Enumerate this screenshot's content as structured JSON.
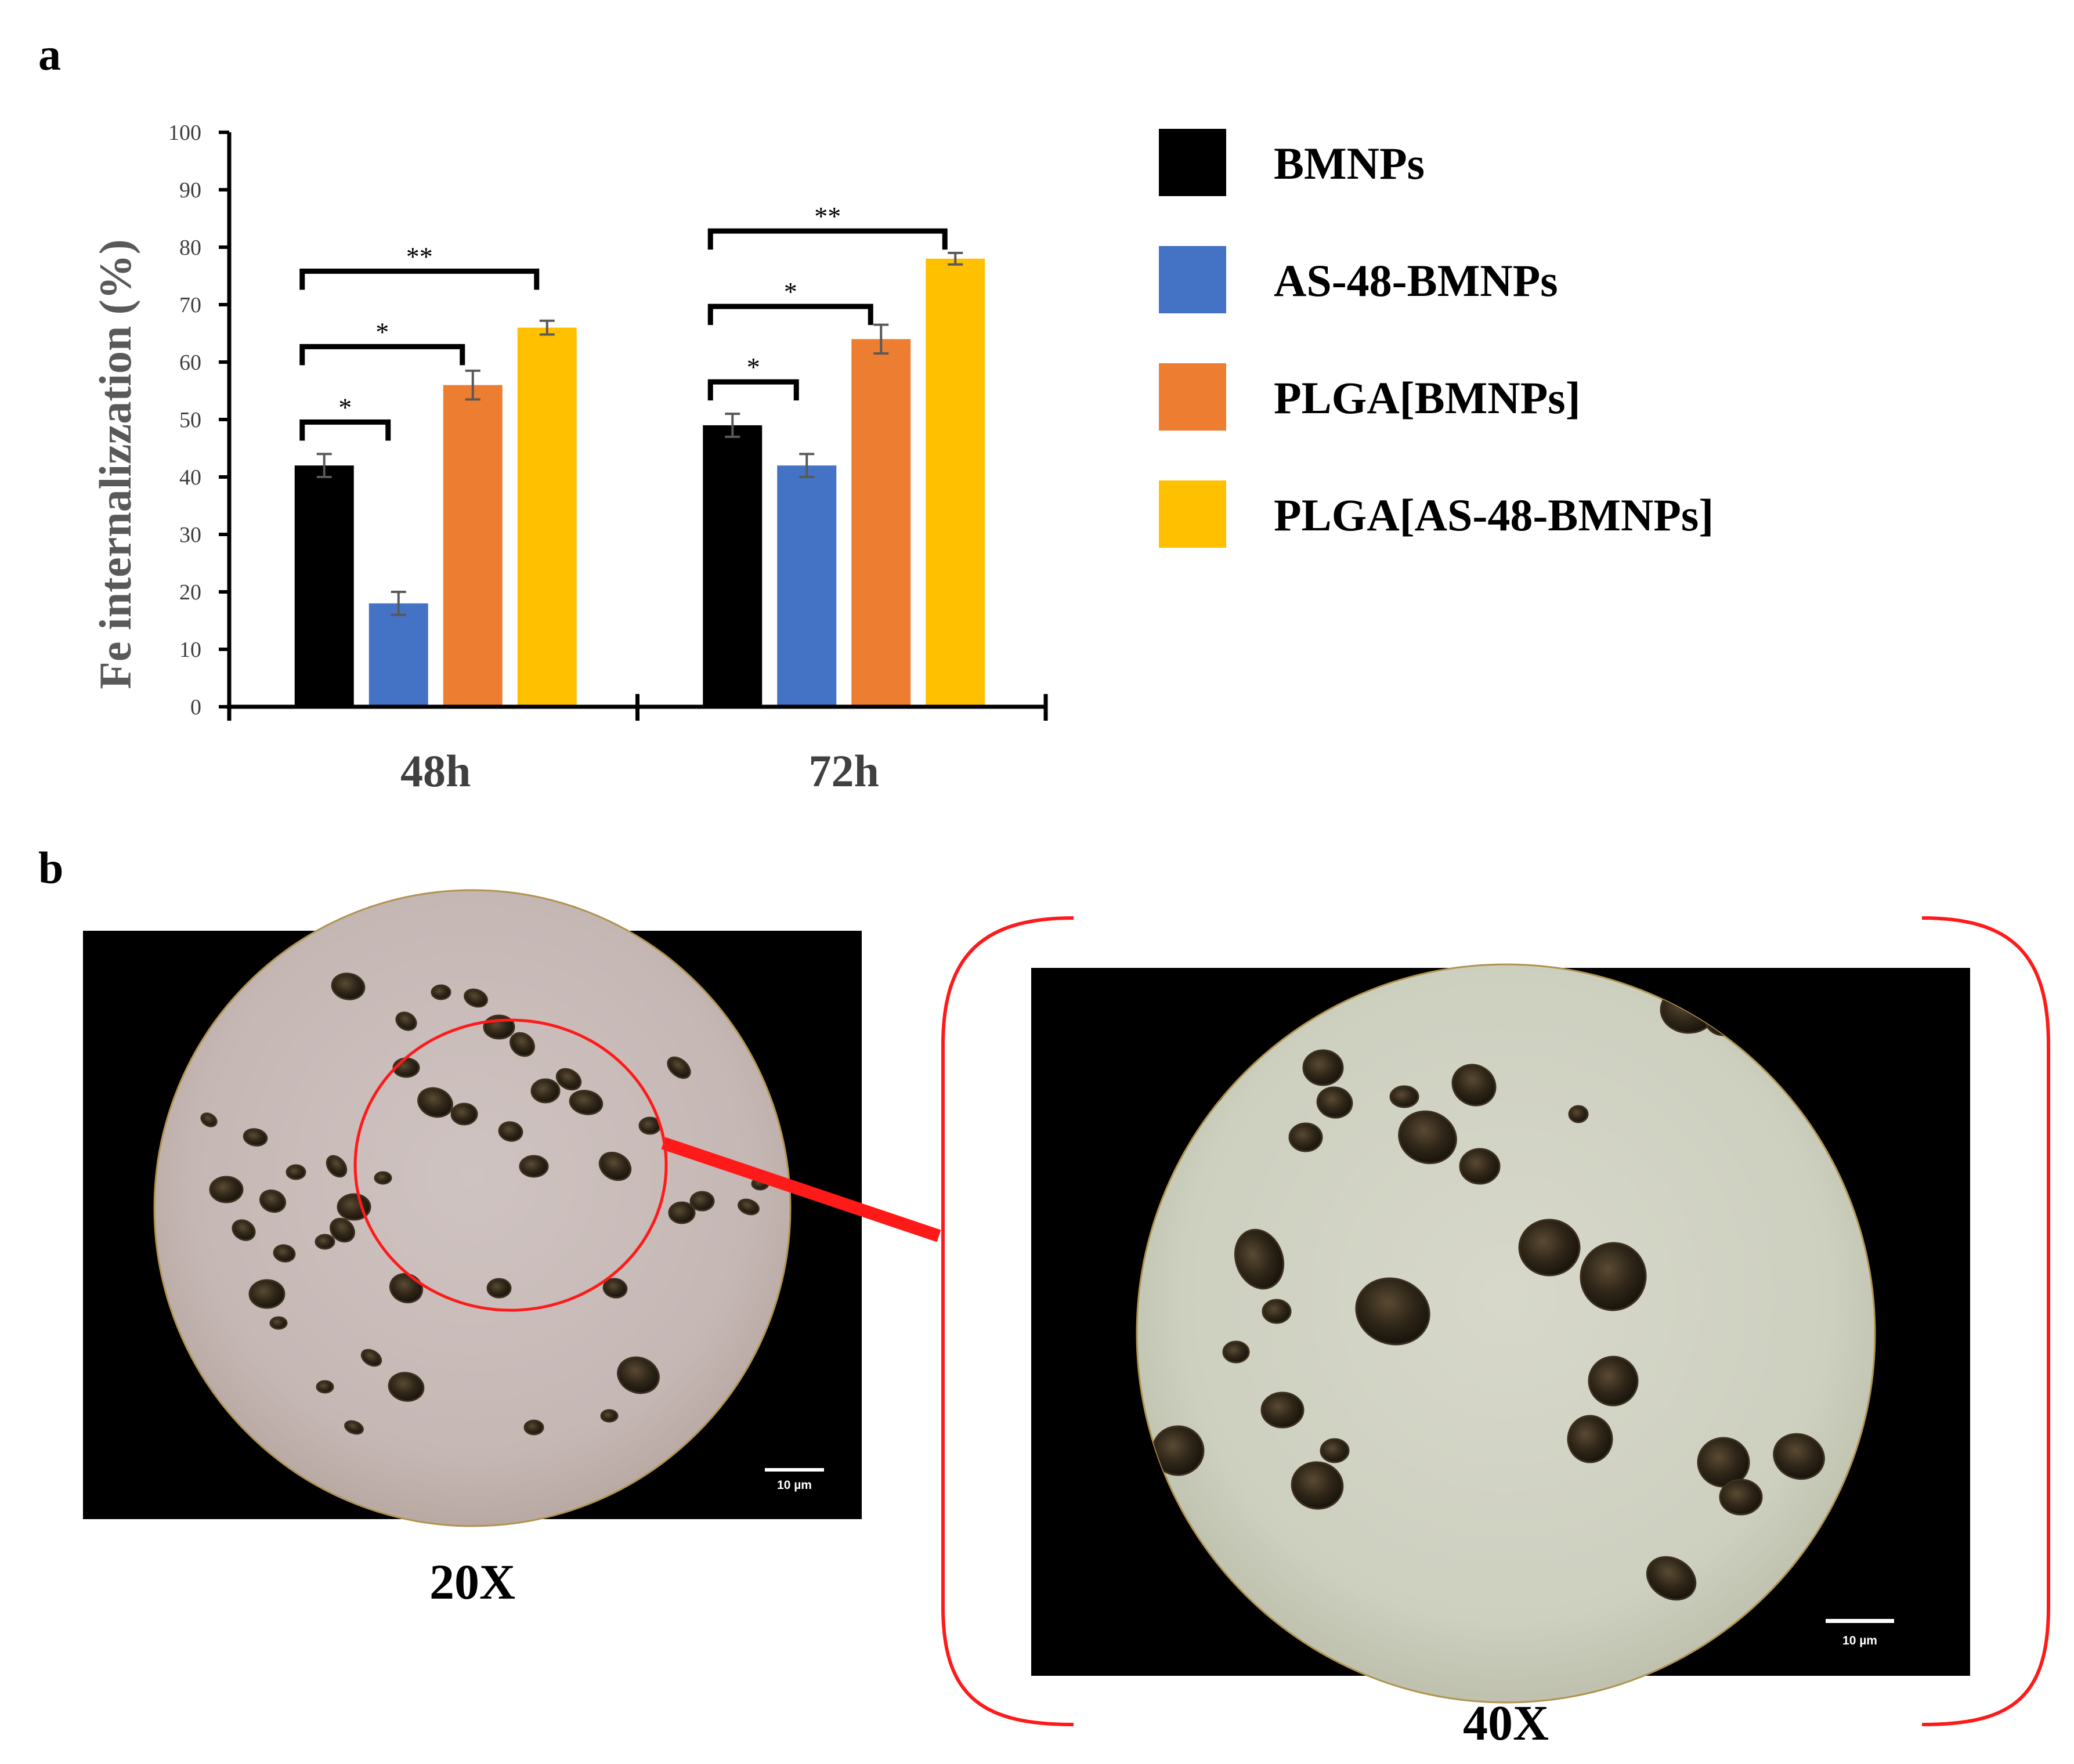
{
  "panels": {
    "a": "a",
    "b": "b"
  },
  "chart_data": {
    "type": "bar",
    "title": "",
    "ylabel": "Fe internalizzation (%)",
    "xlabel": "",
    "ylim": [
      0,
      100
    ],
    "yticks": [
      0,
      10,
      20,
      30,
      40,
      50,
      60,
      70,
      80,
      90,
      100
    ],
    "categories": [
      "48h",
      "72h"
    ],
    "grid": false,
    "legend_position": "right",
    "series": [
      {
        "name": "BMNPs",
        "color": "#000000",
        "values": [
          42,
          49
        ],
        "errors": [
          2,
          2
        ]
      },
      {
        "name": "AS-48-BMNPs",
        "color": "#4472C4",
        "values": [
          18,
          42
        ],
        "errors": [
          2,
          2
        ]
      },
      {
        "name": "PLGA[BMNPs]",
        "color": "#ED7D31",
        "values": [
          56,
          64
        ],
        "errors": [
          2.5,
          2.5
        ]
      },
      {
        "name": "PLGA[AS-48-BMNPs]",
        "color": "#FFC000",
        "values": [
          66,
          78
        ],
        "errors": [
          1.2,
          1
        ]
      }
    ],
    "significance": [
      {
        "category": "48h",
        "from": "BMNPs",
        "to": "AS-48-BMNPs",
        "label": "*"
      },
      {
        "category": "48h",
        "from": "BMNPs",
        "to": "PLGA[BMNPs]",
        "label": "*"
      },
      {
        "category": "48h",
        "from": "BMNPs",
        "to": "PLGA[AS-48-BMNPs]",
        "label": "**"
      },
      {
        "category": "72h",
        "from": "BMNPs",
        "to": "AS-48-BMNPs",
        "label": "*"
      },
      {
        "category": "72h",
        "from": "BMNPs",
        "to": "PLGA[BMNPs]",
        "label": "*"
      },
      {
        "category": "72h",
        "from": "BMNPs",
        "to": "PLGA[AS-48-BMNPs]",
        "label": "**"
      }
    ]
  },
  "micrographs": [
    {
      "magnification": "20X",
      "scale_bar": "10 µm",
      "highlight_color": "#ff0000"
    },
    {
      "magnification": "40X",
      "scale_bar": "10 µm",
      "highlight_color": "#ff0000"
    }
  ]
}
